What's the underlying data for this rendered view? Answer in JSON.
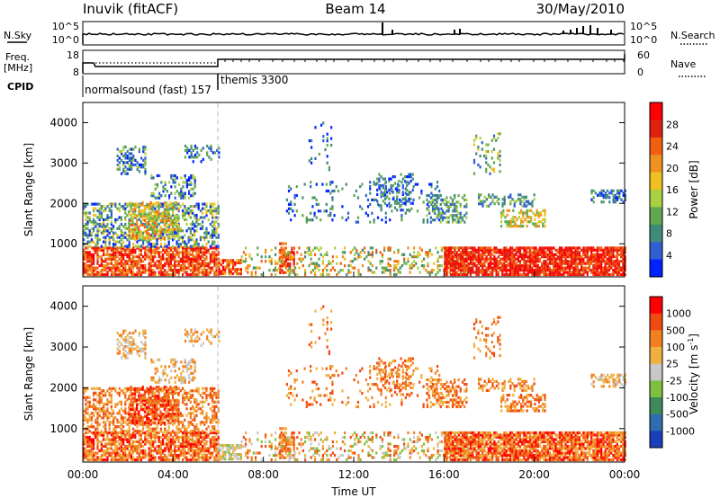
{
  "header": {
    "station": "Inuvik (fitACF)",
    "beam": "Beam 14",
    "date": "30/May/2010"
  },
  "top_panels": {
    "nsky_label": "N.Sky",
    "nsky_ticks": [
      "10^5",
      "10^0"
    ],
    "nsearch_label": "N.Search",
    "nsearch_ticks": [
      "10^5",
      "10^0"
    ],
    "freq_label": "Freq.",
    "freq_unit": "[MHz]",
    "freq_ticks": [
      "18",
      "8"
    ],
    "nave_label": "Nave",
    "nave_ticks": [
      "60",
      "0"
    ],
    "cpid_label": "CPID",
    "cpid_segments": [
      {
        "name": "normalsound (fast) 157",
        "start_hour": 0,
        "end_hour": 6
      },
      {
        "name": "themis 3300",
        "start_hour": 6,
        "end_hour": 24
      }
    ]
  },
  "chart_data": [
    {
      "type": "heatmap",
      "name": "power",
      "ylabel": "Slant Range [km]",
      "yticks": [
        1000,
        2000,
        3000,
        4000
      ],
      "ylim": [
        180,
        4500
      ],
      "xlim_hours": [
        0,
        24
      ],
      "colorbar_label": "Power [dB]",
      "colorbar_ticks": [
        "28",
        "24",
        "20",
        "16",
        "12",
        "8",
        "4"
      ],
      "colors": [
        "#0022ff",
        "#2f5fd0",
        "#3f8a7a",
        "#5fa850",
        "#a8d040",
        "#f0c020",
        "#f09020",
        "#f06010",
        "#e02010",
        "#ff0000"
      ]
    },
    {
      "type": "heatmap",
      "name": "velocity",
      "ylabel": "Slant Range [km]",
      "yticks": [
        1000,
        2000,
        3000,
        4000
      ],
      "ylim": [
        180,
        4500
      ],
      "xlim_hours": [
        0,
        24
      ],
      "colorbar_label": "Velocity [m s",
      "colorbar_label_sup": "-1",
      "colorbar_label_end": "]",
      "colorbar_ticks": [
        "1000",
        "500",
        "100",
        "25",
        "-25",
        "-100",
        "-500",
        "-1000"
      ],
      "colors": [
        "#1a3fb8",
        "#2f6db0",
        "#3f8a5a",
        "#7fc040",
        "#c8c8c8",
        "#f0b040",
        "#f08020",
        "#f04a10",
        "#ff0000"
      ]
    }
  ],
  "x_axis": {
    "ticks": [
      "00:00",
      "04:00",
      "08:00",
      "12:00",
      "16:00",
      "20:00",
      "00:00"
    ],
    "label": "Time UT"
  }
}
